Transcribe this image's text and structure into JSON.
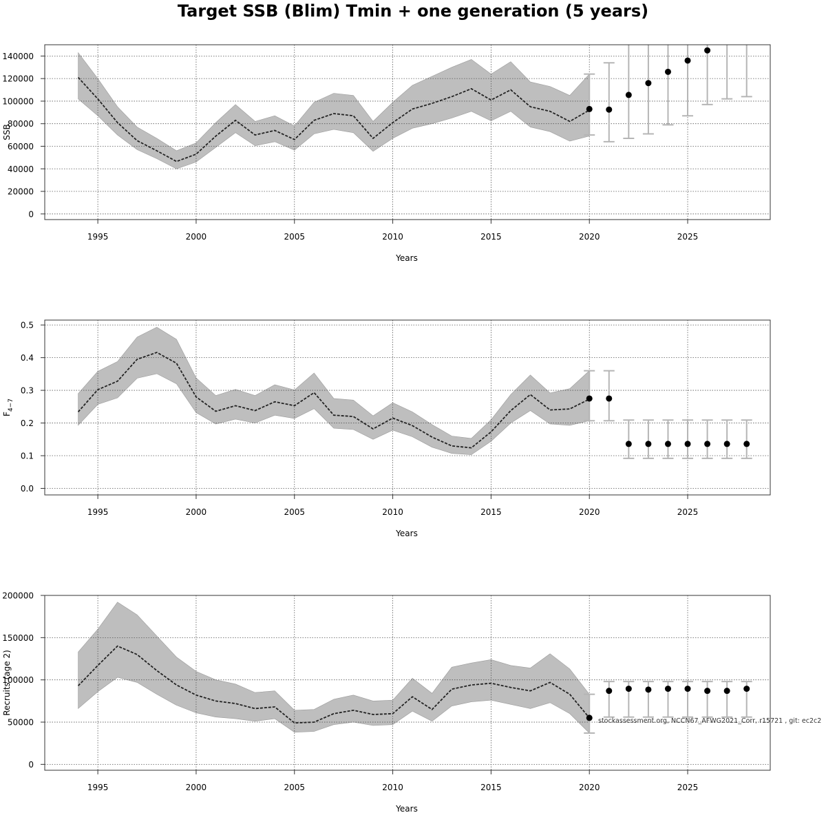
{
  "title": "Target SSB (Blim) Tmin + one generation (5 years)",
  "watermark": "stockassessment.org, NCCN67_AFWG2021_Corr, r15721 , git: ec2c2",
  "colors": {
    "band": "#bebebe",
    "line": "#222222",
    "errorbar": "#b5b5b5",
    "grid": "#555555",
    "point": "#000000"
  },
  "chart_data": [
    {
      "type": "line",
      "id": "ssb",
      "title": "",
      "xlabel": "Years",
      "ylabel": "SSB",
      "xlim": [
        1992.3,
        2029.2
      ],
      "ylim": [
        -5000,
        150000
      ],
      "xticks": [
        1995,
        2000,
        2005,
        2010,
        2015,
        2020,
        2025
      ],
      "xtick_labels": [
        "1995",
        "2000",
        "2005",
        "2010",
        "2015",
        "2020",
        "2025"
      ],
      "yticks": [
        0,
        20000,
        40000,
        60000,
        80000,
        100000,
        120000,
        140000
      ],
      "ytick_labels": [
        "0",
        "20000",
        "40000",
        "60000",
        "80000",
        "100000",
        "120000",
        "140000"
      ],
      "series": [
        {
          "name": "estimate",
          "x": [
            1994,
            1995,
            1996,
            1997,
            1998,
            1999,
            2000,
            2001,
            2002,
            2003,
            2004,
            2005,
            2006,
            2007,
            2008,
            2009,
            2010,
            2011,
            2012,
            2013,
            2014,
            2015,
            2016,
            2017,
            2018,
            2019,
            2020
          ],
          "values": [
            121000,
            102000,
            81000,
            65000,
            56000,
            46500,
            53000,
            69000,
            83000,
            70000,
            74000,
            66000,
            83000,
            89000,
            87000,
            67000,
            81000,
            93000,
            98000,
            104000,
            111000,
            101000,
            110000,
            95000,
            91000,
            82000,
            92000
          ],
          "lower": [
            102000,
            87000,
            70000,
            57000,
            49000,
            40000,
            46000,
            59000,
            72000,
            60500,
            64000,
            56500,
            71000,
            75000,
            72000,
            55500,
            67000,
            76000,
            80000,
            85000,
            91000,
            82500,
            91000,
            77000,
            73000,
            64500,
            69000
          ],
          "upper": [
            143000,
            120000,
            95000,
            77000,
            67000,
            56000,
            63000,
            81000,
            97000,
            82000,
            87000,
            78000,
            99000,
            107000,
            105000,
            82000,
            99000,
            114000,
            122000,
            130000,
            137000,
            124000,
            135000,
            117000,
            113000,
            105000,
            124000
          ]
        },
        {
          "name": "forecast",
          "x": [
            2020,
            2021,
            2022,
            2023,
            2024,
            2025,
            2026,
            2027,
            2028
          ],
          "values": [
            93000,
            92500,
            105500,
            116000,
            126000,
            136000,
            145000,
            null,
            null
          ],
          "lower": [
            70000,
            64000,
            67000,
            71000,
            79000,
            87000,
            97000,
            102000,
            104000
          ],
          "upper": [
            124000,
            134000,
            150000,
            150000,
            150000,
            150000,
            150000,
            150000,
            150000
          ]
        }
      ]
    },
    {
      "type": "line",
      "id": "fbar",
      "title": "",
      "xlabel": "Years",
      "ylabel": "F",
      "ylabel_sub": "4−7",
      "xlim": [
        1992.3,
        2029.2
      ],
      "ylim": [
        -0.02,
        0.515
      ],
      "xticks": [
        1995,
        2000,
        2005,
        2010,
        2015,
        2020,
        2025
      ],
      "xtick_labels": [
        "1995",
        "2000",
        "2005",
        "2010",
        "2015",
        "2020",
        "2025"
      ],
      "yticks": [
        0.0,
        0.1,
        0.2,
        0.3,
        0.4,
        0.5
      ],
      "ytick_labels": [
        "0.0",
        "0.1",
        "0.2",
        "0.3",
        "0.4",
        "0.5"
      ],
      "series": [
        {
          "name": "estimate",
          "x": [
            1994,
            1995,
            1996,
            1997,
            1998,
            1999,
            2000,
            2001,
            2002,
            2003,
            2004,
            2005,
            2006,
            2007,
            2008,
            2009,
            2010,
            2011,
            2012,
            2013,
            2014,
            2015,
            2016,
            2017,
            2018,
            2019,
            2020
          ],
          "values": [
            0.234,
            0.302,
            0.328,
            0.395,
            0.416,
            0.383,
            0.28,
            0.236,
            0.253,
            0.238,
            0.265,
            0.253,
            0.293,
            0.224,
            0.22,
            0.182,
            0.215,
            0.192,
            0.157,
            0.13,
            0.124,
            0.173,
            0.238,
            0.287,
            0.24,
            0.243,
            0.273
          ],
          "lower": [
            0.193,
            0.257,
            0.277,
            0.337,
            0.351,
            0.32,
            0.232,
            0.197,
            0.212,
            0.2,
            0.224,
            0.214,
            0.244,
            0.184,
            0.18,
            0.15,
            0.178,
            0.158,
            0.126,
            0.107,
            0.103,
            0.144,
            0.2,
            0.238,
            0.197,
            0.193,
            0.207
          ],
          "upper": [
            0.29,
            0.358,
            0.388,
            0.463,
            0.493,
            0.456,
            0.338,
            0.284,
            0.303,
            0.284,
            0.317,
            0.301,
            0.353,
            0.275,
            0.27,
            0.222,
            0.262,
            0.234,
            0.195,
            0.16,
            0.153,
            0.21,
            0.287,
            0.347,
            0.292,
            0.305,
            0.36
          ]
        },
        {
          "name": "forecast",
          "x": [
            2020,
            2021,
            2022,
            2023,
            2024,
            2025,
            2026,
            2027,
            2028
          ],
          "values": [
            0.275,
            0.275,
            0.136,
            0.136,
            0.136,
            0.136,
            0.136,
            0.136,
            0.136
          ],
          "lower": [
            0.207,
            0.207,
            0.092,
            0.092,
            0.092,
            0.092,
            0.092,
            0.092,
            0.092
          ],
          "upper": [
            0.36,
            0.36,
            0.209,
            0.209,
            0.209,
            0.209,
            0.209,
            0.209,
            0.209
          ]
        }
      ]
    },
    {
      "type": "line",
      "id": "recruits",
      "title": "",
      "xlabel": "Years",
      "ylabel": "Recruits (age 2)",
      "xlim": [
        1992.3,
        2029.2
      ],
      "ylim": [
        -7000,
        200000
      ],
      "xticks": [
        1995,
        2000,
        2005,
        2010,
        2015,
        2020,
        2025
      ],
      "xtick_labels": [
        "1995",
        "2000",
        "2005",
        "2010",
        "2015",
        "2020",
        "2025"
      ],
      "yticks": [
        0,
        50000,
        100000,
        150000,
        200000
      ],
      "ytick_labels": [
        "0",
        "50000",
        "100000",
        "150000",
        "200000"
      ],
      "series": [
        {
          "name": "estimate",
          "x": [
            1994,
            1995,
            1996,
            1997,
            1998,
            1999,
            2000,
            2001,
            2002,
            2003,
            2004,
            2005,
            2006,
            2007,
            2008,
            2009,
            2010,
            2011,
            2012,
            2013,
            2014,
            2015,
            2016,
            2017,
            2018,
            2019,
            2020
          ],
          "values": [
            93000,
            117000,
            140000,
            130000,
            111000,
            94000,
            82000,
            75000,
            72000,
            66000,
            68000,
            49000,
            50000,
            60000,
            64000,
            59000,
            60000,
            80000,
            65000,
            89000,
            94000,
            96000,
            91000,
            87000,
            97000,
            83000,
            55000
          ],
          "lower": [
            66000,
            86000,
            103000,
            97000,
            83000,
            70000,
            61000,
            56000,
            54000,
            51000,
            54000,
            38000,
            39000,
            47000,
            50000,
            46000,
            47000,
            63000,
            51000,
            69000,
            74000,
            76000,
            71000,
            66000,
            73000,
            60000,
            37000
          ],
          "upper": [
            133000,
            160000,
            192000,
            177000,
            152000,
            127000,
            110000,
            100000,
            95000,
            85000,
            87000,
            64000,
            65000,
            77000,
            82000,
            75000,
            76000,
            102000,
            84000,
            115000,
            120000,
            124000,
            117000,
            114000,
            131000,
            113000,
            83000
          ]
        },
        {
          "name": "forecast",
          "x": [
            2020,
            2021,
            2022,
            2023,
            2024,
            2025,
            2026,
            2027,
            2028
          ],
          "values": [
            55000,
            87000,
            89500,
            88500,
            89500,
            89500,
            87000,
            87000,
            89500
          ],
          "lower": [
            37000,
            56000,
            56000,
            56000,
            56000,
            56000,
            56000,
            56000,
            56000
          ],
          "upper": [
            83000,
            98000,
            98000,
            98000,
            98000,
            98000,
            98000,
            98000,
            98000
          ]
        }
      ]
    }
  ]
}
